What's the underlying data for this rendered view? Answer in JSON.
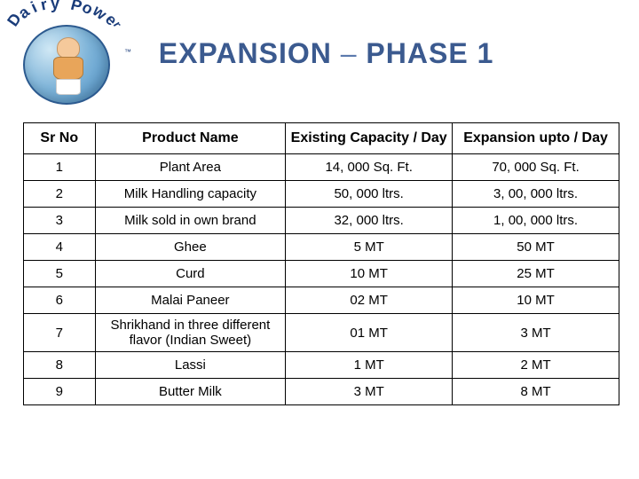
{
  "logo": {
    "brand_letters": [
      "D",
      "a",
      "i",
      "r",
      "y",
      "P",
      "o",
      "w",
      "e",
      "r"
    ],
    "tm": "™"
  },
  "title": {
    "prefix": "EXPANSION",
    "dash": "–",
    "suffix": "PHASE 1"
  },
  "table": {
    "columns": [
      "Sr No",
      "Product Name",
      "Existing Capacity / Day",
      "Expansion upto / Day"
    ],
    "rows": [
      {
        "sr": "1",
        "name": "Plant Area",
        "existing": "14, 000 Sq. Ft.",
        "expansion": "70, 000 Sq. Ft."
      },
      {
        "sr": "2",
        "name": "Milk Handling capacity",
        "existing": "50, 000 ltrs.",
        "expansion": "3, 00, 000 ltrs."
      },
      {
        "sr": "3",
        "name": "Milk sold in own brand",
        "existing": "32, 000 ltrs.",
        "expansion": "1, 00, 000 ltrs."
      },
      {
        "sr": "4",
        "name": "Ghee",
        "existing": "5 MT",
        "expansion": "50 MT"
      },
      {
        "sr": "5",
        "name": "Curd",
        "existing": "10 MT",
        "expansion": "25 MT"
      },
      {
        "sr": "6",
        "name": "Malai Paneer",
        "existing": "02 MT",
        "expansion": "10 MT"
      },
      {
        "sr": "7",
        "name": "Shrikhand in three different flavor (Indian Sweet)",
        "existing": "01 MT",
        "expansion": "3 MT"
      },
      {
        "sr": "8",
        "name": "Lassi",
        "existing": "1 MT",
        "expansion": "2 MT"
      },
      {
        "sr": "9",
        "name": "Butter Milk",
        "existing": "3 MT",
        "expansion": "8 MT"
      }
    ],
    "header_bg": "#ffffff",
    "row_bg": "#ffffff",
    "border_color": "#000000",
    "header_fontsize": 16,
    "body_fontsize": 15
  },
  "colors": {
    "title_color": "#3b5a8f",
    "logo_text": "#1a3c7a",
    "logo_circle_gradient": [
      "#d0e8f5",
      "#7db3d8",
      "#4a8fc7"
    ],
    "background": "#ffffff"
  }
}
